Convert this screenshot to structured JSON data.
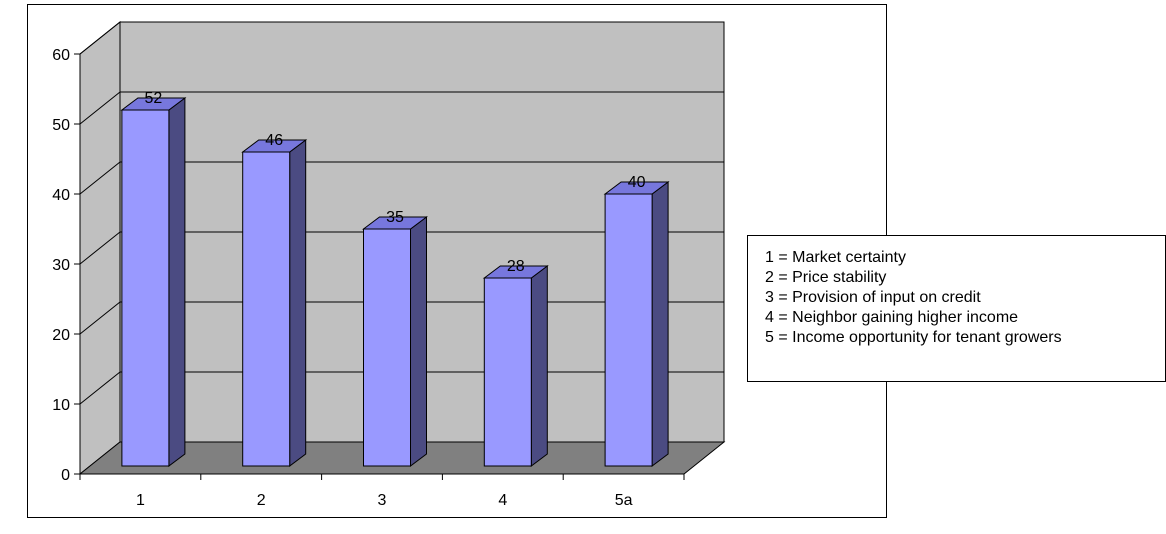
{
  "chart_data": {
    "type": "bar",
    "categories": [
      "1",
      "2",
      "3",
      "4",
      "5a"
    ],
    "values": [
      52,
      46,
      35,
      28,
      40
    ],
    "data_labels": [
      "52",
      "46",
      "35",
      "28",
      "40"
    ],
    "yticks": [
      "0",
      "10",
      "20",
      "30",
      "40",
      "50",
      "60"
    ],
    "ylim": [
      0,
      60
    ],
    "grid": true,
    "style": "3d-column",
    "colors": {
      "bar_front": "#9999ff",
      "bar_side": "#4b4b82",
      "bar_top": "#7777dd",
      "back_wall": "#c0c0c0",
      "side_wall": "#c0c0c0",
      "floor": "#808080"
    },
    "legend": [
      "1 = Market certainty",
      "2 = Price stability",
      "3 = Provision of input on credit",
      "4 = Neighbor gaining higher income",
      "5 = Income opportunity for tenant growers"
    ],
    "legend_position": "right"
  }
}
